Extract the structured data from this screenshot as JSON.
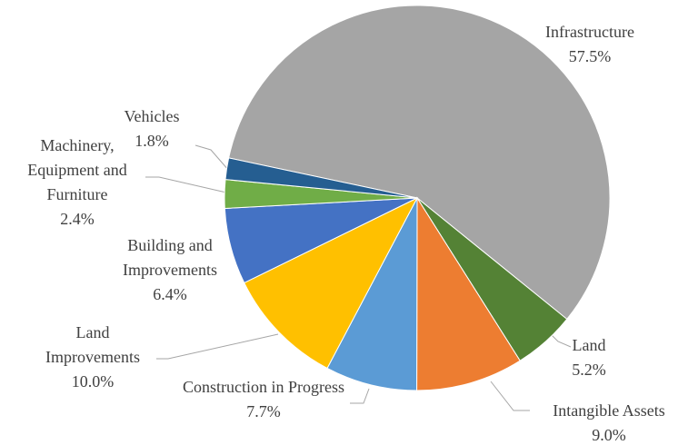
{
  "chart_data": {
    "type": "pie",
    "categories": [
      "Infrastructure",
      "Land",
      "Intangible Assets",
      "Construction in Progress",
      "Land Improvements",
      "Building and Improvements",
      "Machinery, Equipment and Furniture",
      "Vehicles"
    ],
    "values": [
      57.5,
      5.2,
      9.0,
      7.7,
      10.0,
      6.4,
      2.4,
      1.8
    ],
    "value_labels": [
      "57.5%",
      "5.2%",
      "9.0%",
      "7.7%",
      "10.0%",
      "6.4%",
      "2.4%",
      "1.8%"
    ],
    "colors": [
      "#a5a5a5",
      "#548235",
      "#ed7d31",
      "#5b9bd5",
      "#ffc000",
      "#4472c4",
      "#70ad47",
      "#255e91"
    ]
  }
}
